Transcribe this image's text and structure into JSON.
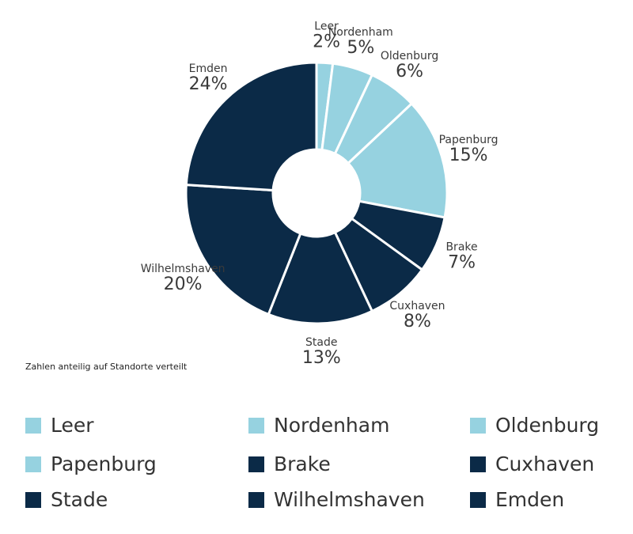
{
  "chart_data": {
    "type": "donut",
    "note": "Zahlen anteilig auf Standorte verteilt",
    "categories": [
      "Leer",
      "Nordenham",
      "Oldenburg",
      "Papenburg",
      "Brake",
      "Cuxhaven",
      "Stade",
      "Wilhelmshaven",
      "Emden"
    ],
    "values": [
      2,
      5,
      6,
      15,
      7,
      8,
      13,
      20,
      24
    ],
    "value_labels": [
      "2%",
      "5%",
      "6%",
      "15%",
      "7%",
      "8%",
      "13%",
      "20%",
      "24%"
    ],
    "colors": [
      "#96d2e0",
      "#96d2e0",
      "#96d2e0",
      "#96d2e0",
      "#0b2a47",
      "#0b2a47",
      "#0b2a47",
      "#0b2a47",
      "#0b2a47"
    ]
  }
}
